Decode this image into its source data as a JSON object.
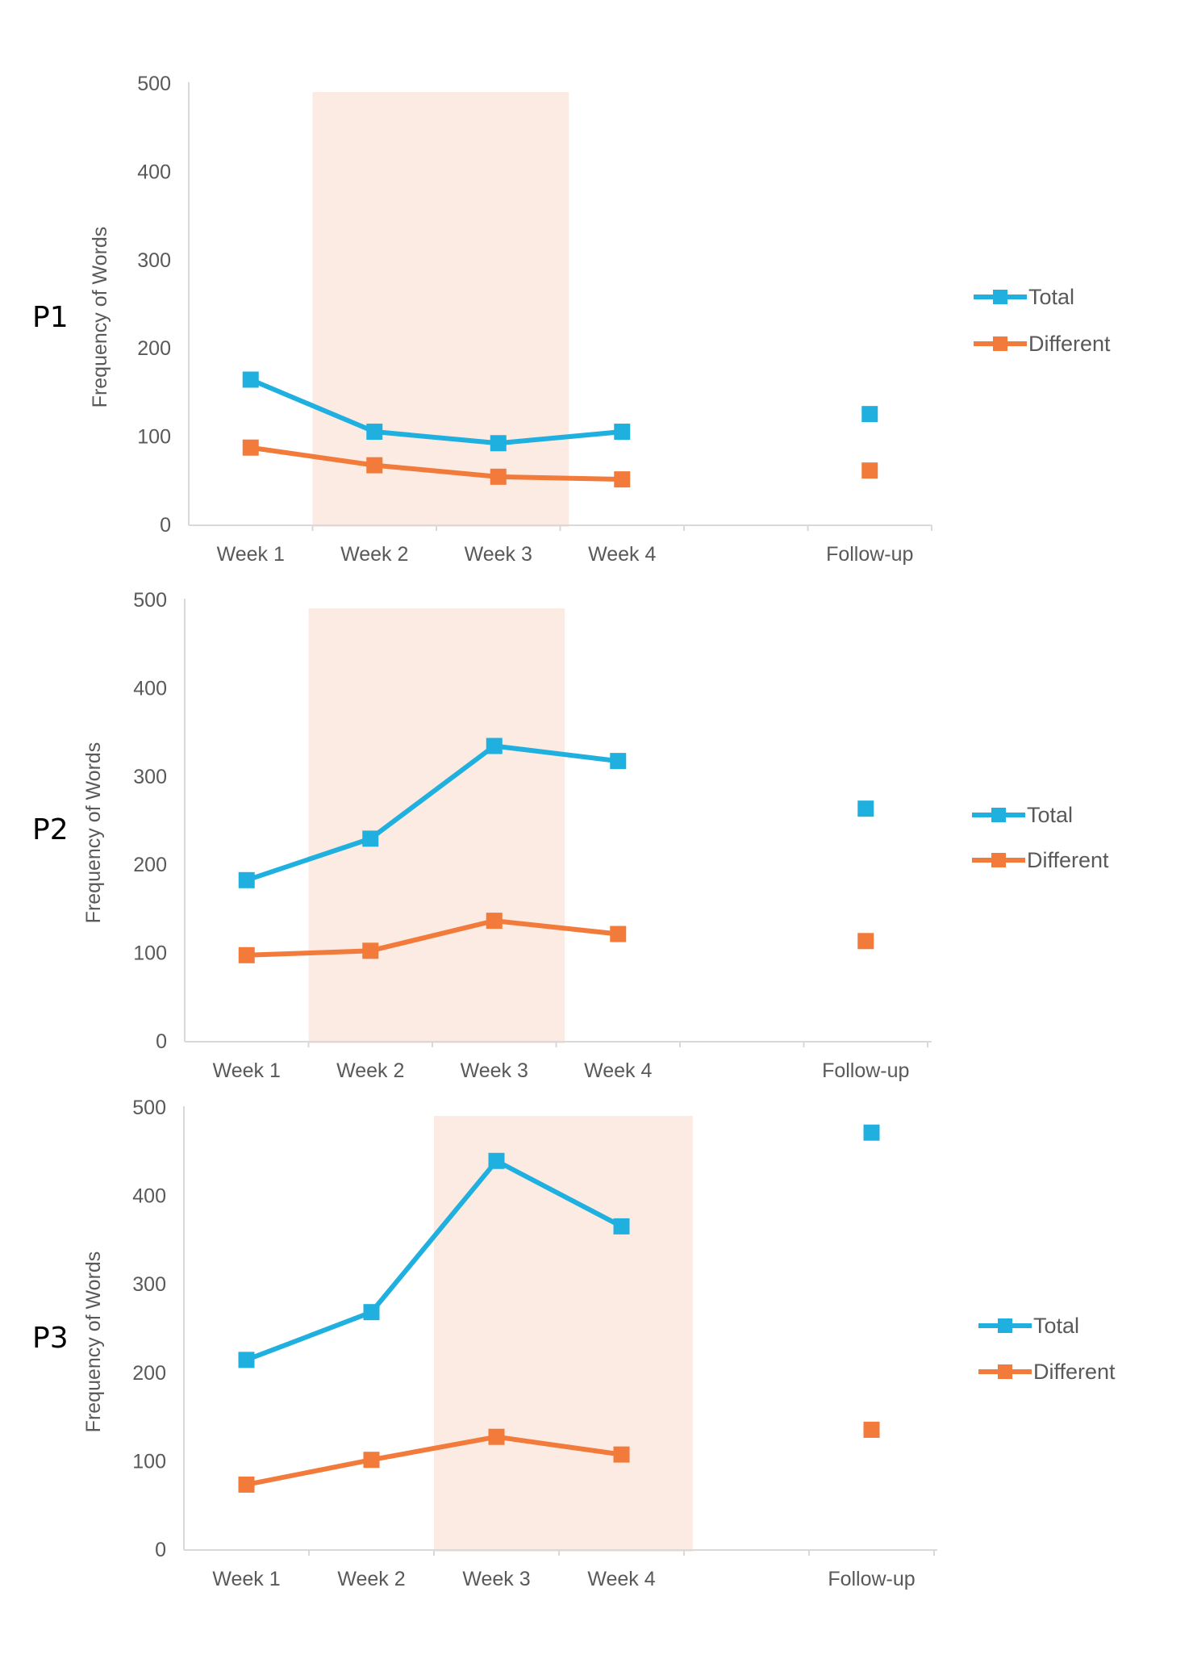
{
  "colors": {
    "total": "#1fb0e0",
    "different": "#f27a3a",
    "phase_shade": "#fbebe3",
    "axis": "#d9d9d9"
  },
  "chart_data": [
    {
      "type": "line",
      "panel_label": "P1",
      "categories": [
        "Week 1",
        "Week 2",
        "Week 3",
        "Week 4",
        "",
        "Follow-up"
      ],
      "ylabel": "Frequency of Words",
      "ylim": [
        0,
        500
      ],
      "yticks": [
        0,
        100,
        200,
        300,
        400,
        500
      ],
      "shaded_categories": [
        "Week 2",
        "Week 3"
      ],
      "legend": [
        "Total",
        "Different"
      ],
      "legend_position": "right",
      "series": [
        {
          "name": "Total",
          "color_key": "total",
          "values": [
            165,
            106,
            93,
            106,
            null,
            126
          ]
        },
        {
          "name": "Different",
          "color_key": "different",
          "values": [
            88,
            68,
            55,
            52,
            null,
            62
          ]
        }
      ]
    },
    {
      "type": "line",
      "panel_label": "P2",
      "categories": [
        "Week 1",
        "Week 2",
        "Week 3",
        "Week 4",
        "",
        "Follow-up"
      ],
      "ylabel": "Frequency of Words",
      "ylim": [
        0,
        500
      ],
      "yticks": [
        0,
        100,
        200,
        300,
        400,
        500
      ],
      "shaded_categories": [
        "Week 2",
        "Week 3"
      ],
      "legend": [
        "Total",
        "Different"
      ],
      "legend_position": "right",
      "series": [
        {
          "name": "Total",
          "color_key": "total",
          "values": [
            183,
            230,
            335,
            318,
            null,
            264
          ]
        },
        {
          "name": "Different",
          "color_key": "different",
          "values": [
            98,
            103,
            137,
            122,
            null,
            114
          ]
        }
      ]
    },
    {
      "type": "line",
      "panel_label": "P3",
      "categories": [
        "Week 1",
        "Week 2",
        "Week 3",
        "Week 4",
        "",
        "Follow-up"
      ],
      "ylabel": "Frequency of Words",
      "ylim": [
        0,
        500
      ],
      "yticks": [
        0,
        100,
        200,
        300,
        400,
        500
      ],
      "shaded_categories": [
        "Week 3",
        "Week 4"
      ],
      "legend": [
        "Total",
        "Different"
      ],
      "legend_position": "right",
      "series": [
        {
          "name": "Total",
          "color_key": "total",
          "values": [
            215,
            269,
            440,
            366,
            null,
            472
          ]
        },
        {
          "name": "Different",
          "color_key": "different",
          "values": [
            74,
            102,
            128,
            108,
            null,
            136
          ]
        }
      ]
    }
  ]
}
